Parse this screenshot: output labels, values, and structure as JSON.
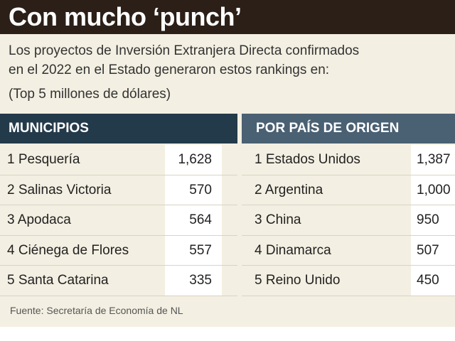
{
  "header": {
    "title": "Con mucho ‘punch’",
    "bg_color": "#2b1f17"
  },
  "intro": {
    "line1": "Los proyectos de Inversión Extranjera Directa confirmados",
    "line2": "en el 2022 en el Estado generaron estos rankings en:",
    "subtitle": "(Top 5 millones de dólares)"
  },
  "municipios": {
    "heading": "MUNICIPIOS",
    "heading_color": "#233a4a",
    "rows": [
      {
        "name": "1 Pesquería",
        "value": "1,628"
      },
      {
        "name": "2 Salinas Victoria",
        "value": "570"
      },
      {
        "name": "3 Apodaca",
        "value": "564"
      },
      {
        "name": "4 Ciénega de Flores",
        "value": "557"
      },
      {
        "name": "5 Santa Catarina",
        "value": "335"
      }
    ]
  },
  "pais": {
    "heading": "POR PAÍS DE ORIGEN",
    "heading_color": "#4a6073",
    "rows": [
      {
        "name": "1 Estados Unidos",
        "value": "1,387"
      },
      {
        "name": "2 Argentina",
        "value": "1,000"
      },
      {
        "name": "3 China",
        "value": "950"
      },
      {
        "name": "4 Dinamarca",
        "value": "507"
      },
      {
        "name": "5 Reino Unido",
        "value": "450"
      }
    ]
  },
  "source": "Fuente: Secretaría de Economía de NL"
}
